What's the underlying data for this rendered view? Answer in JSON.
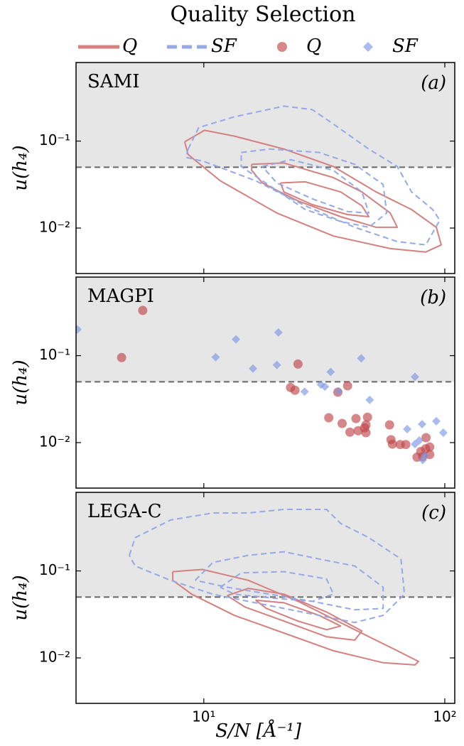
{
  "title": "Quality Selection",
  "chart_data": [
    {
      "type": "line",
      "panel_label": "SAMI",
      "tag": "(a)",
      "ylabel": "u(h₄)",
      "xscale": "log",
      "yscale": "log",
      "xlim": [
        2.95,
        110
      ],
      "ylim": [
        0.003,
        0.8
      ],
      "yticks": [
        {
          "value": 0.1,
          "label": "10⁻¹"
        },
        {
          "value": 0.01,
          "label": "10⁻²"
        }
      ],
      "threshold": 0.05,
      "series": [
        {
          "name": "Q",
          "color": "#d4807f",
          "dash": false,
          "x": [
            8.33,
            10.07,
            13.4,
            21.5,
            34.5,
            51.9,
            72.8,
            92.2,
            96.7,
            83.4,
            59.4,
            34.5,
            20.1,
            11.7,
            8.61,
            8.33,
            null,
            15.8,
            21.5,
            34.5,
            45.3,
            59.4,
            63.5,
            51.9,
            37.0,
            24.6,
            17.5,
            15.8,
            15.8,
            null,
            20.8,
            26.4,
            37.0,
            45.3,
            48.4,
            39.5,
            28.2,
            21.5,
            20.8
          ],
          "y": [
            0.098,
            0.133,
            0.114,
            0.081,
            0.051,
            0.026,
            0.0163,
            0.0102,
            0.0064,
            0.0053,
            0.0058,
            0.0081,
            0.0149,
            0.035,
            0.07,
            0.098,
            null,
            0.054,
            0.056,
            0.038,
            0.026,
            0.0149,
            0.0102,
            0.0102,
            0.0135,
            0.0205,
            0.033,
            0.046,
            0.054,
            null,
            0.033,
            0.034,
            0.026,
            0.018,
            0.0135,
            0.0143,
            0.0186,
            0.026,
            0.033
          ]
        },
        {
          "name": "SF",
          "color": "#94a9e6",
          "dash": true,
          "x": [
            8.61,
            9.53,
            13.4,
            21.5,
            28.2,
            34.5,
            48.4,
            63.5,
            72.8,
            89.1,
            95.3,
            83.4,
            63.5,
            42.3,
            26.4,
            16.4,
            10.07,
            8.44,
            8.61,
            null,
            14.3,
            18.8,
            30.1,
            42.3,
            55.5,
            57.4,
            48.4,
            37.0,
            26.4,
            17.5,
            14.3,
            14.3,
            null,
            17.5,
            23.0,
            34.5,
            45.3,
            48.4,
            39.5,
            28.2,
            20.1,
            17.5
          ],
          "y": [
            0.081,
            0.143,
            0.19,
            0.252,
            0.23,
            0.157,
            0.081,
            0.051,
            0.026,
            0.0163,
            0.0123,
            0.0064,
            0.007,
            0.0102,
            0.018,
            0.035,
            0.058,
            0.065,
            0.081,
            null,
            0.074,
            0.081,
            0.074,
            0.054,
            0.0316,
            0.0149,
            0.0102,
            0.0119,
            0.0163,
            0.035,
            0.051,
            0.074,
            null,
            0.051,
            0.061,
            0.046,
            0.026,
            0.0149,
            0.0155,
            0.0217,
            0.033,
            0.051
          ]
        }
      ]
    },
    {
      "type": "scatter",
      "panel_label": "MAGPI",
      "tag": "(b)",
      "ylabel": "u(h₄)",
      "xscale": "log",
      "yscale": "log",
      "xlim": [
        2.95,
        110
      ],
      "ylim": [
        0.003,
        0.8
      ],
      "yticks": [
        {
          "value": 0.1,
          "label": "10⁻¹"
        },
        {
          "value": 0.01,
          "label": "10⁻²"
        }
      ],
      "threshold": 0.05,
      "series": [
        {
          "name": "Q",
          "color": "#c0474a",
          "marker": "circle",
          "x": [
            4.56,
            5.58,
            24.6,
            22.9,
            23.9,
            33.0,
            36.0,
            37.5,
            39.5,
            40.4,
            42.8,
            43.7,
            46.5,
            47.1,
            47.8,
            47.1,
            59.0,
            59.8,
            60.6,
            65.3,
            68.9,
            76.7,
            81.0,
            83.3,
            83.6,
            86.6,
            79.5,
            86.6
          ],
          "y": [
            0.095,
            0.331,
            0.08,
            0.043,
            0.04,
            0.0193,
            0.038,
            0.0166,
            0.045,
            0.0132,
            0.0189,
            0.0137,
            0.0148,
            0.013,
            0.0196,
            0.016,
            0.016,
            0.0108,
            0.0096,
            0.0095,
            0.0095,
            0.0068,
            0.0069,
            0.0085,
            0.0114,
            0.0073,
            0.0079,
            0.0089
          ]
        },
        {
          "name": "SF",
          "color": "#7d96e3",
          "marker": "diamond",
          "x": [
            2.99,
            11.2,
            13.6,
            16.0,
            20.1,
            20.4,
            26.2,
            30.6,
            31.8,
            33.6,
            36.2,
            45.0,
            48.8,
            75.2,
            69.8,
            75.2,
            80.5,
            78.4,
            82.8,
            92.2,
            98.6,
            81.0
          ],
          "y": [
            0.2,
            0.096,
            0.154,
            0.071,
            0.078,
            0.185,
            0.0385,
            0.0465,
            0.044,
            0.065,
            0.039,
            0.093,
            0.031,
            0.057,
            0.0143,
            0.0096,
            0.0163,
            0.0106,
            0.0071,
            0.0176,
            0.013,
            0.0063
          ]
        }
      ]
    },
    {
      "type": "line",
      "panel_label": "LEGA-C",
      "tag": "(c)",
      "ylabel": "u(h₄)",
      "xlabel": "S/N [Å⁻¹]",
      "xscale": "log",
      "yscale": "log",
      "xlim": [
        2.95,
        110
      ],
      "ylim": [
        0.003,
        0.8
      ],
      "xticks": [
        {
          "value": 10,
          "label": "10¹"
        },
        {
          "value": 100,
          "label": "10²"
        }
      ],
      "yticks": [
        {
          "value": 0.1,
          "label": "10⁻¹"
        },
        {
          "value": 0.01,
          "label": "10⁻²"
        }
      ],
      "threshold": 0.05,
      "series": [
        {
          "name": "Q",
          "color": "#d4807f",
          "dash": false,
          "x": [
            7.43,
            9.87,
            15.3,
            24.6,
            42.3,
            63.5,
            77.8,
            75.2,
            55.5,
            34.5,
            21.5,
            13.4,
            8.91,
            7.43,
            7.43,
            null,
            12.5,
            15.3,
            21.5,
            32.3,
            45.3,
            42.3,
            32.3,
            21.5,
            14.8,
            12.5,
            null,
            16.4,
            21.5,
            30.1,
            37.0,
            32.3,
            24.6,
            18.2,
            16.4
          ],
          "y": [
            0.098,
            0.104,
            0.078,
            0.0447,
            0.0211,
            0.0121,
            0.0091,
            0.0083,
            0.0088,
            0.0121,
            0.0193,
            0.0308,
            0.054,
            0.078,
            0.098,
            null,
            0.052,
            0.063,
            0.054,
            0.0337,
            0.0204,
            0.016,
            0.0175,
            0.0265,
            0.0385,
            0.052,
            null,
            0.046,
            0.043,
            0.0308,
            0.0232,
            0.0211,
            0.0265,
            0.037,
            0.046
          ]
        },
        {
          "name": "SF",
          "color": "#94a9e6",
          "dash": true,
          "x": [
            4.91,
            5.19,
            7.28,
            10.9,
            15.3,
            21.5,
            32.3,
            37.0,
            48.4,
            65.8,
            68.0,
            55.5,
            42.3,
            30.1,
            21.5,
            15.3,
            10.9,
            7.28,
            5.19,
            4.91,
            null,
            9.22,
            10.9,
            15.3,
            21.5,
            30.1,
            42.3,
            55.5,
            55.5,
            42.3,
            28.2,
            18.8,
            12.5,
            9.22,
            null,
            11.7,
            14.3,
            21.5,
            32.3,
            34.5,
            28.2,
            18.8,
            13.4,
            11.7
          ],
          "y": [
            0.151,
            0.241,
            0.385,
            0.464,
            0.464,
            0.509,
            0.509,
            0.351,
            0.241,
            0.137,
            0.054,
            0.0308,
            0.0255,
            0.0308,
            0.037,
            0.0447,
            0.054,
            0.078,
            0.114,
            0.151,
            null,
            0.078,
            0.125,
            0.151,
            0.166,
            0.137,
            0.114,
            0.065,
            0.037,
            0.0357,
            0.0447,
            0.054,
            0.065,
            0.078,
            null,
            0.065,
            0.095,
            0.098,
            0.081,
            0.054,
            0.0447,
            0.049,
            0.054,
            0.065
          ]
        }
      ]
    }
  ]
}
